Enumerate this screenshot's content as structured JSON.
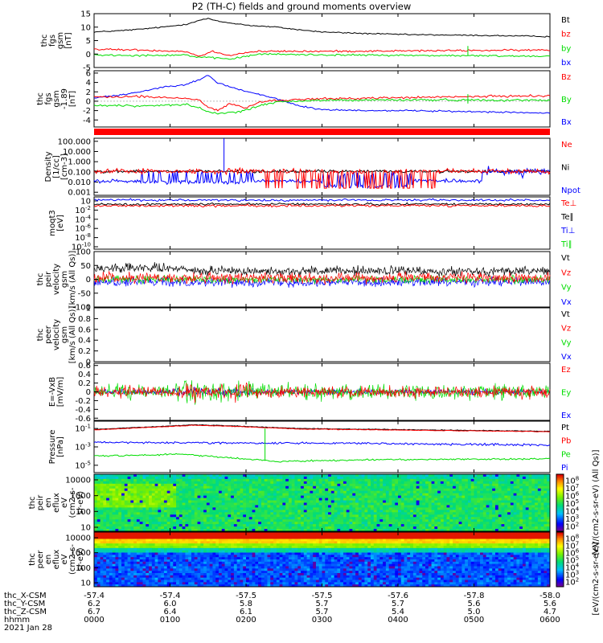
{
  "title": "P2 (TH-C) fields and ground moments overview",
  "colors": {
    "black": "#000000",
    "red": "#ff0000",
    "green": "#00dd00",
    "blue": "#0000ff"
  },
  "chart_data": [
    {
      "id": "fgs_gsm",
      "type": "line",
      "ylabel": [
        "thc",
        "fgs",
        "gsm",
        "[nT]"
      ],
      "yticks": [
        15,
        10,
        5,
        0,
        -5
      ],
      "ylim": [
        -5,
        15
      ],
      "legend": [
        {
          "name": "Bt",
          "color": "black"
        },
        {
          "name": "bz",
          "color": "red"
        },
        {
          "name": "by",
          "color": "green"
        },
        {
          "name": "bx",
          "color": "blue"
        }
      ],
      "series": [
        {
          "name": "Bt",
          "color": "black",
          "noise": 0.2,
          "pts": [
            [
              0,
              8.2
            ],
            [
              0.05,
              8.6
            ],
            [
              0.1,
              9.2
            ],
            [
              0.15,
              10
            ],
            [
              0.2,
              11
            ],
            [
              0.23,
              12.5
            ],
            [
              0.25,
              13.2
            ],
            [
              0.27,
              12.2
            ],
            [
              0.3,
              11.5
            ],
            [
              0.35,
              10.5
            ],
            [
              0.4,
              10
            ],
            [
              0.45,
              9
            ],
            [
              0.5,
              8.2
            ],
            [
              0.6,
              7.6
            ],
            [
              0.7,
              7.2
            ],
            [
              0.8,
              7
            ],
            [
              0.9,
              6.8
            ],
            [
              1,
              6.5
            ]
          ]
        },
        {
          "name": "bz",
          "color": "red",
          "noise": 0.3,
          "pts": [
            [
              0,
              1.8
            ],
            [
              0.1,
              1.5
            ],
            [
              0.2,
              1
            ],
            [
              0.23,
              -0.8
            ],
            [
              0.26,
              1
            ],
            [
              0.3,
              -0.5
            ],
            [
              0.33,
              0.5
            ],
            [
              0.36,
              1
            ],
            [
              0.5,
              1
            ],
            [
              0.7,
              1.2
            ],
            [
              1,
              1.5
            ]
          ]
        },
        {
          "name": "by",
          "color": "green",
          "noise": 0.3,
          "pts": [
            [
              0,
              -0.3
            ],
            [
              0.1,
              -0.5
            ],
            [
              0.2,
              -0.3
            ],
            [
              0.23,
              -1.2
            ],
            [
              0.3,
              -1.8
            ],
            [
              0.33,
              -1
            ],
            [
              0.36,
              0
            ],
            [
              0.5,
              -0.3
            ],
            [
              0.7,
              -0.5
            ],
            [
              1,
              -0.8
            ]
          ]
        },
        {
          "name": "bx",
          "color": "blue",
          "noise": 0,
          "pts": []
        }
      ]
    },
    {
      "id": "fgs_gsm_zoom",
      "type": "line",
      "ylabel": [
        "thc",
        "fgs",
        "gsm",
        "-1.89",
        "[nT]"
      ],
      "yticks": [
        6,
        4,
        2,
        0,
        -2,
        -4
      ],
      "ylim": [
        -5.5,
        6.5
      ],
      "legend": [
        {
          "name": "Bz",
          "color": "red"
        },
        {
          "name": "By",
          "color": "green"
        },
        {
          "name": "Bx",
          "color": "blue"
        }
      ],
      "series": [
        {
          "name": "Bx",
          "color": "blue",
          "noise": 0.15,
          "pts": [
            [
              0,
              0.8
            ],
            [
              0.05,
              1.2
            ],
            [
              0.1,
              2
            ],
            [
              0.15,
              3
            ],
            [
              0.2,
              3.6
            ],
            [
              0.23,
              4.5
            ],
            [
              0.25,
              5.5
            ],
            [
              0.27,
              4
            ],
            [
              0.3,
              3
            ],
            [
              0.33,
              2.2
            ],
            [
              0.36,
              1.5
            ],
            [
              0.4,
              0.5
            ],
            [
              0.45,
              -1
            ],
            [
              0.5,
              -1.8
            ],
            [
              0.6,
              -2
            ],
            [
              0.7,
              -2
            ],
            [
              0.8,
              -2.2
            ],
            [
              0.9,
              -2.3
            ],
            [
              1,
              -2.6
            ]
          ]
        },
        {
          "name": "Bz",
          "color": "red",
          "noise": 0.2,
          "pts": [
            [
              0,
              0.9
            ],
            [
              0.1,
              1
            ],
            [
              0.2,
              0.6
            ],
            [
              0.23,
              0.3
            ],
            [
              0.25,
              -1.2
            ],
            [
              0.27,
              -2
            ],
            [
              0.3,
              -0.5
            ],
            [
              0.33,
              -1.5
            ],
            [
              0.36,
              -0.3
            ],
            [
              0.4,
              0.2
            ],
            [
              0.5,
              0.5
            ],
            [
              0.7,
              0.8
            ],
            [
              1,
              1.2
            ]
          ]
        },
        {
          "name": "By",
          "color": "green",
          "noise": 0.2,
          "pts": [
            [
              0,
              -0.9
            ],
            [
              0.1,
              -1
            ],
            [
              0.2,
              -0.7
            ],
            [
              0.23,
              -1.4
            ],
            [
              0.26,
              -2.6
            ],
            [
              0.3,
              -2.5
            ],
            [
              0.33,
              -2
            ],
            [
              0.36,
              -1
            ],
            [
              0.4,
              -0.2
            ],
            [
              0.5,
              0.2
            ],
            [
              0.7,
              0.3
            ],
            [
              1,
              0.2
            ]
          ]
        }
      ]
    },
    {
      "id": "density",
      "type": "line",
      "log": true,
      "ylabel": [
        "Density",
        "[1/cc]",
        "[cm-3]"
      ],
      "ytick_labels": [
        "100.000",
        "10.000",
        "1.000",
        "0.100",
        "0.010",
        "0.001"
      ],
      "ylim_log": [
        -3.3,
        2.3
      ],
      "legend": [
        {
          "name": "Ne",
          "color": "red"
        },
        {
          "name": "Ni",
          "color": "black"
        },
        {
          "name": "Npot",
          "color": "blue"
        }
      ]
    },
    {
      "id": "mom_temp",
      "type": "line",
      "log": true,
      "ylabel": [
        "moqt3",
        "[eV]"
      ],
      "ytick_labels": [
        "10",
        "10-2",
        "10-4",
        "10-6",
        "10-8",
        "10-10"
      ],
      "legend": [
        {
          "name": "Te⊥",
          "color": "red"
        },
        {
          "name": "Te∥",
          "color": "black"
        },
        {
          "name": "Ti⊥",
          "color": "blue"
        },
        {
          "name": "Ti∥",
          "color": "green"
        }
      ]
    },
    {
      "id": "peir_velocity",
      "type": "line",
      "ylabel": [
        "thc",
        "peir",
        "velocity",
        "gsm",
        "[km/s (All Qs)]"
      ],
      "yticks": [
        100,
        50,
        0,
        -50,
        -100
      ],
      "ylim": [
        -100,
        100
      ],
      "legend": [
        {
          "name": "Vt",
          "color": "black"
        },
        {
          "name": "Vz",
          "color": "red"
        },
        {
          "name": "Vy",
          "color": "green"
        },
        {
          "name": "Vx",
          "color": "blue"
        }
      ]
    },
    {
      "id": "peer_velocity",
      "type": "line",
      "ylabel": [
        "thc",
        "peer",
        "velocity",
        "gsm",
        "[km/s (All Qs)]"
      ],
      "yticks": [
        1.0,
        0.8,
        0.6,
        0.4,
        0.2,
        0.0
      ],
      "ylim": [
        0,
        1
      ],
      "legend": [
        {
          "name": "Vt",
          "color": "black"
        },
        {
          "name": "Vz",
          "color": "red"
        },
        {
          "name": "Vy",
          "color": "green"
        },
        {
          "name": "Vx",
          "color": "blue"
        }
      ]
    },
    {
      "id": "efield",
      "type": "line",
      "ylabel": [
        "E=-VxB",
        "[mV/m]"
      ],
      "yticks": [
        0.6,
        0.4,
        0.2,
        0.0,
        -0.2,
        -0.4,
        -0.6
      ],
      "ylim": [
        -0.65,
        0.65
      ],
      "legend": [
        {
          "name": "Ez",
          "color": "red"
        },
        {
          "name": "Ey",
          "color": "green"
        },
        {
          "name": "Ex",
          "color": "blue"
        }
      ]
    },
    {
      "id": "pressure",
      "type": "line",
      "log": true,
      "ylabel": [
        "Pressure",
        "[nPa]"
      ],
      "ytick_labels": [
        "10-1",
        "10-3",
        "10-5"
      ],
      "legend": [
        {
          "name": "Pt",
          "color": "black"
        },
        {
          "name": "Pb",
          "color": "red"
        },
        {
          "name": "Pe",
          "color": "green"
        },
        {
          "name": "Pi",
          "color": "blue"
        }
      ]
    },
    {
      "id": "peir_spec",
      "type": "heatmap",
      "ylabel": [
        "thc",
        "peir",
        "en",
        "eflux",
        "eV",
        "(cm2-s-",
        "sr-eV)"
      ],
      "ytick_labels": [
        "10000",
        "1000",
        "100",
        "10"
      ],
      "colorbar_ticks": [
        "108",
        "107",
        "106",
        "105",
        "104",
        "103",
        "102"
      ]
    },
    {
      "id": "peer_spec",
      "type": "heatmap",
      "ylabel": [
        "thc",
        "peer",
        "en",
        "eflux",
        "eV",
        "(cm2-s-",
        "sr-eV)"
      ],
      "ytick_labels": [
        "10000",
        "1000",
        "100",
        "10"
      ],
      "colorbar_ticks": [
        "108",
        "107",
        "106",
        "105",
        "104",
        "103",
        "102"
      ]
    }
  ],
  "colorbar_label": "[eV/(cm2-s-sr-eV)]",
  "colorbar_label_upper": "[eV/(cm2-s-sr-eV) (All Qs)]",
  "xaxis": {
    "rows": [
      {
        "name": "thc_X-CSM",
        "values": [
          "-57.4",
          "-57.4",
          "-57.5",
          "-57.5",
          "-57.6",
          "-57.8",
          "-58.0"
        ]
      },
      {
        "name": "thc_Y-CSM",
        "values": [
          "6.2",
          "6.0",
          "5.8",
          "5.7",
          "5.7",
          "5.6",
          "5.6"
        ]
      },
      {
        "name": "thc_Z-CSM",
        "values": [
          "6.7",
          "6.4",
          "6.1",
          "5.7",
          "5.4",
          "5.0",
          "4.7"
        ]
      },
      {
        "name": "hhmm",
        "values": [
          "0000",
          "0100",
          "0200",
          "0300",
          "0400",
          "0500",
          "0600"
        ]
      }
    ],
    "date": "2021 Jan 28"
  }
}
